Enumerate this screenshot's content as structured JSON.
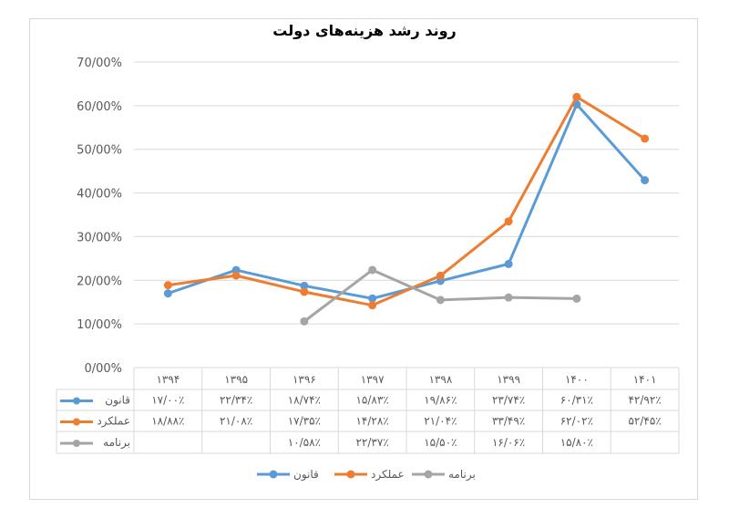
{
  "chart_data": {
    "type": "line",
    "title": "روند رشد هزینه‌های دولت",
    "categories": [
      "۱۳۹۴",
      "۱۳۹۵",
      "۱۳۹۶",
      "۱۳۹۷",
      "۱۳۹۸",
      "۱۳۹۹",
      "۱۴۰۰",
      "۱۴۰۱"
    ],
    "ylim": [
      0,
      70
    ],
    "yticks": [
      "0/00%",
      "10/00%",
      "20/00%",
      "30/00%",
      "40/00%",
      "50/00%",
      "60/00%",
      "70/00%"
    ],
    "grid": true,
    "legend": "bottom",
    "series": [
      {
        "name": "قانون",
        "color": "#5b9bd5",
        "values": [
          17.0,
          22.34,
          18.74,
          15.83,
          19.86,
          23.74,
          60.31,
          42.92
        ],
        "labels": [
          "۱۷/۰۰٪",
          "۲۲/۳۴٪",
          "۱۸/۷۴٪",
          "۱۵/۸۳٪",
          "۱۹/۸۶٪",
          "۲۳/۷۴٪",
          "۶۰/۳۱٪",
          "۴۲/۹۲٪"
        ]
      },
      {
        "name": "عملکرد",
        "color": "#ed7d31",
        "values": [
          18.88,
          21.08,
          17.35,
          14.28,
          21.04,
          33.49,
          62.02,
          52.45
        ],
        "labels": [
          "۱۸/۸۸٪",
          "۲۱/۰۸٪",
          "۱۷/۳۵٪",
          "۱۴/۲۸٪",
          "۲۱/۰۴٪",
          "۳۳/۴۹٪",
          "۶۲/۰۲٪",
          "۵۲/۴۵٪"
        ]
      },
      {
        "name": "برنامه",
        "color": "#a5a5a5",
        "values": [
          null,
          null,
          10.58,
          22.37,
          15.5,
          16.06,
          15.8,
          null
        ],
        "labels": [
          "",
          "",
          "۱۰/۵۸٪",
          "۲۲/۳۷٪",
          "۱۵/۵۰٪",
          "۱۶/۰۶٪",
          "۱۵/۸۰٪",
          ""
        ]
      }
    ]
  }
}
